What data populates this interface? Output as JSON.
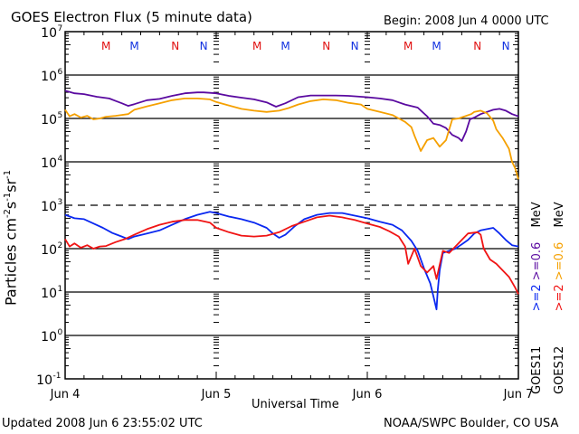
{
  "header": {
    "title": "GOES Electron Flux (5 minute data)",
    "begin": "Begin: 2008 Jun 4 0000 UTC"
  },
  "footer": {
    "updated": "Updated 2008 Jun  6 23:55:02 UTC",
    "source": "NOAA/SWPC Boulder, CO USA"
  },
  "legend": {
    "goes11": {
      "label": "GOES11",
      "series_low": ">=0.6",
      "series_high": ">=2",
      "unit": "MeV"
    },
    "goes12": {
      "label": "GOES12",
      "series_low": ">=0.6",
      "series_high": ">=2",
      "unit": "MeV"
    }
  },
  "colors": {
    "goes11_06": "#5a0aa0",
    "goes12_06": "#f5a000",
    "goes11_2": "#0a28f0",
    "goes12_2": "#f01414",
    "marker_m": "#e01010",
    "marker_n": "#1030e0"
  },
  "chart_data": {
    "type": "line",
    "title": "GOES Electron Flux (5 minute data)",
    "xlabel": "Universal Time",
    "ylabel": "Particles cm^-2 s^-1 sr^-1",
    "yscale": "log",
    "ylim": [
      0.1,
      10000000
    ],
    "xlim_hours": [
      0,
      72
    ],
    "x_tick_labels": [
      "Jun 4",
      "Jun 5",
      "Jun 6",
      "Jun 7"
    ],
    "x_tick_hours": [
      0,
      24,
      48,
      72
    ],
    "y_tick_exponents": [
      -1,
      0,
      1,
      2,
      3,
      4,
      5,
      6,
      7
    ],
    "y_tick_labels": [
      "10^-1",
      "10^0",
      "10^1",
      "10^2",
      "10^3",
      "10^4",
      "10^5",
      "10^6",
      "10^7"
    ],
    "threshold_line": {
      "value": 1000,
      "style": "dashed"
    },
    "grid": "horizontal decades",
    "markers": [
      {
        "hour": 6.5,
        "label": "M",
        "satellite": "GOES12"
      },
      {
        "hour": 11,
        "label": "M",
        "satellite": "GOES11"
      },
      {
        "hour": 17.5,
        "label": "N",
        "satellite": "GOES12"
      },
      {
        "hour": 22,
        "label": "N",
        "satellite": "GOES11"
      },
      {
        "hour": 30.5,
        "label": "M",
        "satellite": "GOES12"
      },
      {
        "hour": 35,
        "label": "M",
        "satellite": "GOES11"
      },
      {
        "hour": 41.5,
        "label": "N",
        "satellite": "GOES12"
      },
      {
        "hour": 46,
        "label": "N",
        "satellite": "GOES11"
      },
      {
        "hour": 54.5,
        "label": "M",
        "satellite": "GOES12"
      },
      {
        "hour": 59,
        "label": "M",
        "satellite": "GOES11"
      },
      {
        "hour": 65.5,
        "label": "N",
        "satellite": "GOES12"
      },
      {
        "hour": 70,
        "label": "N",
        "satellite": "GOES11"
      }
    ],
    "series": [
      {
        "name": "GOES11 >=0.6 MeV",
        "color_key": "goes11_06",
        "hours": [
          0,
          1.5,
          3,
          5,
          7,
          9,
          10,
          11,
          13,
          15,
          17,
          19,
          21,
          22,
          24,
          26,
          28,
          30,
          32,
          33.5,
          35,
          37,
          39,
          41,
          43,
          45,
          48,
          50,
          52,
          54,
          56,
          57.5,
          58.5,
          59.5,
          60.5,
          61.5,
          62.5,
          63,
          63.7,
          64.3,
          65,
          66,
          67,
          68,
          69,
          70,
          71,
          72
        ],
        "log10": [
          5.64,
          5.58,
          5.56,
          5.5,
          5.46,
          5.35,
          5.29,
          5.33,
          5.42,
          5.45,
          5.52,
          5.58,
          5.6,
          5.6,
          5.58,
          5.52,
          5.48,
          5.44,
          5.37,
          5.27,
          5.35,
          5.49,
          5.53,
          5.53,
          5.53,
          5.52,
          5.49,
          5.46,
          5.42,
          5.32,
          5.25,
          5.05,
          4.88,
          4.85,
          4.78,
          4.62,
          4.55,
          4.48,
          4.7,
          4.98,
          5.02,
          5.1,
          5.15,
          5.2,
          5.22,
          5.18,
          5.1,
          5.05
        ]
      },
      {
        "name": "GOES12 >=0.6 MeV",
        "color_key": "goes12_06",
        "hours": [
          0,
          0.7,
          1.5,
          2.5,
          3.5,
          4.5,
          5.5,
          6.5,
          8,
          10,
          11,
          13,
          15,
          17,
          19,
          21,
          23,
          24,
          26,
          28,
          30,
          32,
          34,
          35.5,
          37,
          39,
          41,
          43,
          45,
          47,
          48,
          50,
          52,
          53,
          54,
          55,
          55.5,
          56.5,
          57.5,
          58.5,
          59.5,
          60.5,
          61.5,
          62.5,
          63.5,
          64.5,
          65,
          66,
          67,
          68,
          68.5,
          69.5,
          70.5,
          71,
          71.5,
          72
        ],
        "log10": [
          5.2,
          5.05,
          5.1,
          5.02,
          5.06,
          4.98,
          5.0,
          5.04,
          5.06,
          5.1,
          5.2,
          5.28,
          5.35,
          5.42,
          5.46,
          5.46,
          5.44,
          5.38,
          5.3,
          5.22,
          5.18,
          5.15,
          5.18,
          5.24,
          5.32,
          5.4,
          5.44,
          5.42,
          5.36,
          5.32,
          5.22,
          5.15,
          5.08,
          5.0,
          4.92,
          4.8,
          4.6,
          4.25,
          4.5,
          4.55,
          4.35,
          4.5,
          4.98,
          5.0,
          5.05,
          5.1,
          5.15,
          5.18,
          5.12,
          4.95,
          4.75,
          4.55,
          4.3,
          4.0,
          3.85,
          3.6
        ]
      },
      {
        "name": "GOES11 >=2 MeV",
        "color_key": "goes11_2",
        "hours": [
          0,
          1.5,
          3,
          4.5,
          6,
          7.5,
          9,
          10,
          11,
          13,
          15,
          17,
          19,
          21,
          23,
          24,
          26,
          28,
          30,
          32,
          33,
          34,
          35,
          36.5,
          38,
          40,
          42,
          44,
          46,
          48,
          50,
          52,
          53.5,
          55,
          56,
          57,
          58,
          58.5,
          59,
          59.2,
          59.5,
          60,
          61,
          62,
          63,
          64,
          65,
          66,
          67,
          68,
          69,
          70,
          71,
          72
        ],
        "log10": [
          2.78,
          2.7,
          2.68,
          2.58,
          2.48,
          2.36,
          2.28,
          2.22,
          2.28,
          2.35,
          2.42,
          2.55,
          2.68,
          2.78,
          2.85,
          2.82,
          2.74,
          2.68,
          2.6,
          2.48,
          2.35,
          2.25,
          2.32,
          2.52,
          2.68,
          2.78,
          2.82,
          2.82,
          2.76,
          2.7,
          2.62,
          2.55,
          2.42,
          2.18,
          1.95,
          1.55,
          1.2,
          0.9,
          0.6,
          1.05,
          1.5,
          1.9,
          1.95,
          2.0,
          2.1,
          2.2,
          2.35,
          2.42,
          2.45,
          2.48,
          2.35,
          2.2,
          2.08,
          2.05
        ]
      },
      {
        "name": "GOES12 >=2 MeV",
        "color_key": "goes12_2",
        "hours": [
          0,
          0.7,
          1.5,
          2.5,
          3.5,
          4.5,
          5.5,
          6.5,
          8,
          9.5,
          11,
          13,
          15,
          17,
          19,
          21,
          23,
          24,
          26,
          28,
          30,
          32,
          34,
          36,
          38,
          40,
          42,
          44,
          46,
          48,
          50,
          51.5,
          53,
          54,
          54.5,
          55.5,
          56.5,
          57.5,
          58.5,
          59,
          60,
          61,
          62,
          63,
          64,
          65.5,
          66,
          66.5,
          67.5,
          68.5,
          69.5,
          70.5,
          71.5,
          72
        ],
        "log10": [
          2.22,
          2.05,
          2.12,
          2.02,
          2.08,
          2.0,
          2.05,
          2.06,
          2.15,
          2.22,
          2.32,
          2.45,
          2.55,
          2.62,
          2.66,
          2.66,
          2.6,
          2.48,
          2.38,
          2.3,
          2.28,
          2.3,
          2.38,
          2.52,
          2.62,
          2.72,
          2.76,
          2.72,
          2.66,
          2.58,
          2.5,
          2.4,
          2.28,
          2.05,
          1.65,
          2.0,
          1.6,
          1.45,
          1.6,
          1.3,
          1.95,
          1.9,
          2.05,
          2.2,
          2.35,
          2.38,
          2.32,
          2.0,
          1.75,
          1.65,
          1.5,
          1.35,
          1.1,
          0.95
        ]
      }
    ]
  }
}
